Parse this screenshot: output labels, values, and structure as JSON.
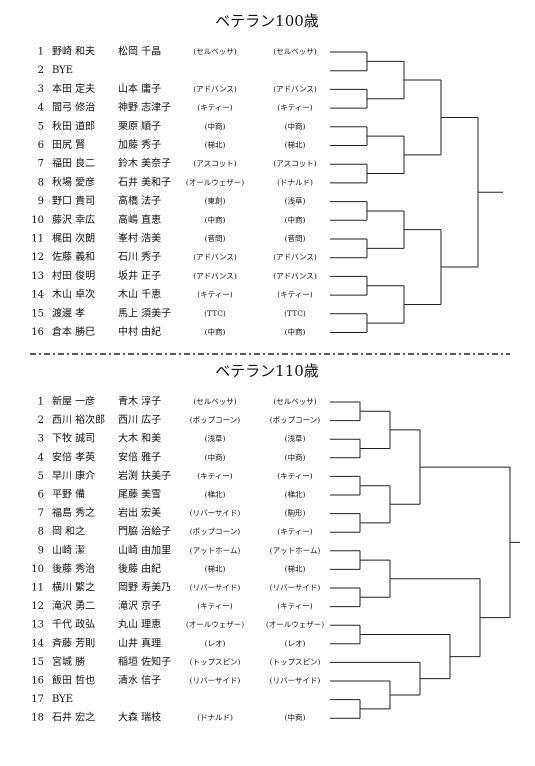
{
  "sections": [
    {
      "title": "ベテラン100歳",
      "entries": [
        {
          "no": 1,
          "player1": "野崎 和夫",
          "player2": "松岡 千晶",
          "club1": "(セルベッサ)",
          "club2": "(セルベッサ)"
        },
        {
          "no": 2,
          "player1": "BYE"
        },
        {
          "no": 3,
          "player1": "本田 定夫",
          "player2": "山本 庸子",
          "club1": "(アドバンス)",
          "club2": "(アドバンス)"
        },
        {
          "no": 4,
          "player1": "間弓 修治",
          "player2": "神野 志津子",
          "club1": "(キティー)",
          "club2": "(キティー)"
        },
        {
          "no": 5,
          "player1": "秋田 道郎",
          "player2": "栗原 順子",
          "club1": "(中商)",
          "club2": "(中商)"
        },
        {
          "no": 6,
          "player1": "田尻 賢",
          "player2": "加藤 秀子",
          "club1": "(梯北)",
          "club2": "(梯北)"
        },
        {
          "no": 7,
          "player1": "福田 良二",
          "player2": "鈴木 美奈子",
          "club1": "(アスコット)",
          "club2": "(アスコット)"
        },
        {
          "no": 8,
          "player1": "秋場 愛彦",
          "player2": "石井 美和子",
          "club1": "(オールウェザー)",
          "club2": "(ドナルド)"
        },
        {
          "no": 9,
          "player1": "野口 貴司",
          "player2": "高橋 法子",
          "club1": "(東創)",
          "club2": "(浅草)"
        },
        {
          "no": 10,
          "player1": "藤沢 幸広",
          "player2": "高嶋 直恵",
          "club1": "(中商)",
          "club2": "(中商)"
        },
        {
          "no": 11,
          "player1": "梶田 次朗",
          "player2": "峯村 浩美",
          "club1": "(昔問)",
          "club2": "(昔問)"
        },
        {
          "no": 12,
          "player1": "佐藤 義和",
          "player2": "石川 秀子",
          "club1": "(アドバンス)",
          "club2": "(アドバンス)"
        },
        {
          "no": 13,
          "player1": "村田 俊明",
          "player2": "坂井 正子",
          "club1": "(アドバンス)",
          "club2": "(アドバンス)"
        },
        {
          "no": 14,
          "player1": "木山 卓次",
          "player2": "木山 千恵",
          "club1": "(キティー)",
          "club2": "(キティー)"
        },
        {
          "no": 15,
          "player1": "渡邊 孝",
          "player2": "馬上 須美子",
          "club1": "(TTC)",
          "club2": "(TTC)"
        },
        {
          "no": 16,
          "player1": "倉本 勝巳",
          "player2": "中村 由紀",
          "club1": "(中商)",
          "club2": "(中商)"
        }
      ]
    },
    {
      "title": "ベテラン110歳",
      "entries": [
        {
          "no": 1,
          "player1": "新屋 一彦",
          "player2": "青木 淳子",
          "club1": "(セルベッサ)",
          "club2": "(セルベッサ)"
        },
        {
          "no": 2,
          "player1": "西川 裕次郎",
          "player2": "西川 広子",
          "club1": "(ポップコーン)",
          "club2": "(ポップコーン)"
        },
        {
          "no": 3,
          "player1": "下牧 誠司",
          "player2": "大木 和美",
          "club1": "(浅草)",
          "club2": "(浅草)"
        },
        {
          "no": 4,
          "player1": "安倍 孝英",
          "player2": "安倍 雅子",
          "club1": "(中商)",
          "club2": "(中商)"
        },
        {
          "no": 5,
          "player1": "早川 康介",
          "player2": "岩渕 扶美子",
          "club1": "(キティー)",
          "club2": "(キティー)"
        },
        {
          "no": 6,
          "player1": "平野 備",
          "player2": "尾藤 美雪",
          "club1": "(梯北)",
          "club2": "(梯北)"
        },
        {
          "no": 7,
          "player1": "福島 秀之",
          "player2": "岩出 宏美",
          "club1": "(リバーサイド)",
          "club2": "(駒形)"
        },
        {
          "no": 8,
          "player1": "岡 和之",
          "player2": "門脇 治絵子",
          "club1": "(ポップコーン)",
          "club2": "(キティー)"
        },
        {
          "no": 9,
          "player1": "山崎 潔",
          "player2": "山崎 由加里",
          "club1": "(アットホーム)",
          "club2": "(アットホーム)"
        },
        {
          "no": 10,
          "player1": "後藤 秀治",
          "player2": "後藤 由紀",
          "club1": "(梯北)",
          "club2": "(梯北)"
        },
        {
          "no": 11,
          "player1": "横川 繁之",
          "player2": "岡野 寿美乃",
          "club1": "(リバーサイド)",
          "club2": "(リバーサイド)"
        },
        {
          "no": 12,
          "player1": "滝沢 勇二",
          "player2": "滝沢 京子",
          "club1": "(キティー)",
          "club2": "(キティー)"
        },
        {
          "no": 13,
          "player1": "千代 政弘",
          "player2": "丸山 理恵",
          "club1": "(オールウェザー)",
          "club2": "(オールウェザー)"
        },
        {
          "no": 14,
          "player1": "斉藤 芳則",
          "player2": "山井 真理",
          "club1": "(レオ)",
          "club2": "(レオ)"
        },
        {
          "no": 15,
          "player1": "宮城 勝",
          "player2": "稲垣 佐知子",
          "club1": "(トップスピン)",
          "club2": "(トップスピン)"
        },
        {
          "no": 16,
          "player1": "飯田 哲也",
          "player2": "清水 信子",
          "club1": "(リバーサイド)",
          "club2": "(リバーサイド)"
        },
        {
          "no": 17,
          "player1": "BYE"
        },
        {
          "no": 18,
          "player1": "石井 宏之",
          "player2": "大森 瑞枝",
          "club1": "(ドナルド)",
          "club2": "(中商)"
        }
      ]
    }
  ]
}
